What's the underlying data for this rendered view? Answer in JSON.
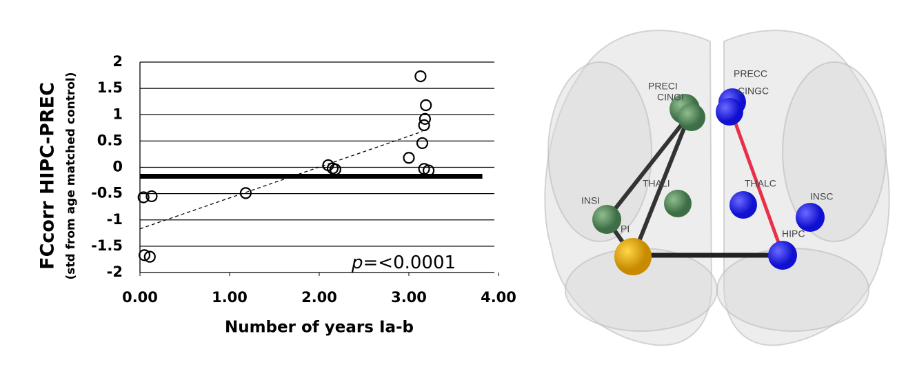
{
  "chart_data": {
    "type": "scatter",
    "y_label": "FCcorr HIPC-PREC",
    "y_sublabel": "(std from age matched control)",
    "x_label": "Number of years Ia-b",
    "annotation_var": "p",
    "annotation": "=<0.0001",
    "x": [
      0.04,
      0.13,
      0.05,
      0.11,
      1.18,
      2.1,
      2.15,
      2.18,
      3.0,
      3.13,
      3.19,
      3.18,
      3.17,
      3.15,
      3.17,
      3.22
    ],
    "values": [
      -0.57,
      -0.55,
      -1.67,
      -1.7,
      -0.49,
      0.04,
      -0.02,
      -0.04,
      0.18,
      1.73,
      1.18,
      0.92,
      0.8,
      0.46,
      -0.03,
      -0.06
    ],
    "trendline": {
      "x": [
        0,
        3.15
      ],
      "y": [
        -1.17,
        0.68
      ]
    },
    "reference_line": {
      "y": -0.17,
      "x": [
        0,
        3.82
      ]
    },
    "xlim": [
      0,
      4
    ],
    "ylim": [
      -2,
      2
    ],
    "xticks": [
      {
        "value": 0,
        "label": "0.00"
      },
      {
        "value": 1,
        "label": "1.00"
      },
      {
        "value": 2,
        "label": "2.00"
      },
      {
        "value": 3,
        "label": "3.00"
      },
      {
        "value": 4,
        "label": "4.00"
      }
    ],
    "yticks": [
      2,
      1.5,
      1,
      0.5,
      0,
      -0.5,
      -1,
      -1.5,
      -2
    ],
    "grid": true
  },
  "network": {
    "nodes": [
      {
        "label": "PRECI"
      },
      {
        "label": "CINGI"
      },
      {
        "label": "PRECC"
      },
      {
        "label": "CINGC"
      },
      {
        "label": "INSI"
      },
      {
        "label": "PI"
      },
      {
        "label": "THALI"
      },
      {
        "label": "THALC"
      },
      {
        "label": "INSC"
      },
      {
        "label": "HIPC"
      }
    ]
  }
}
